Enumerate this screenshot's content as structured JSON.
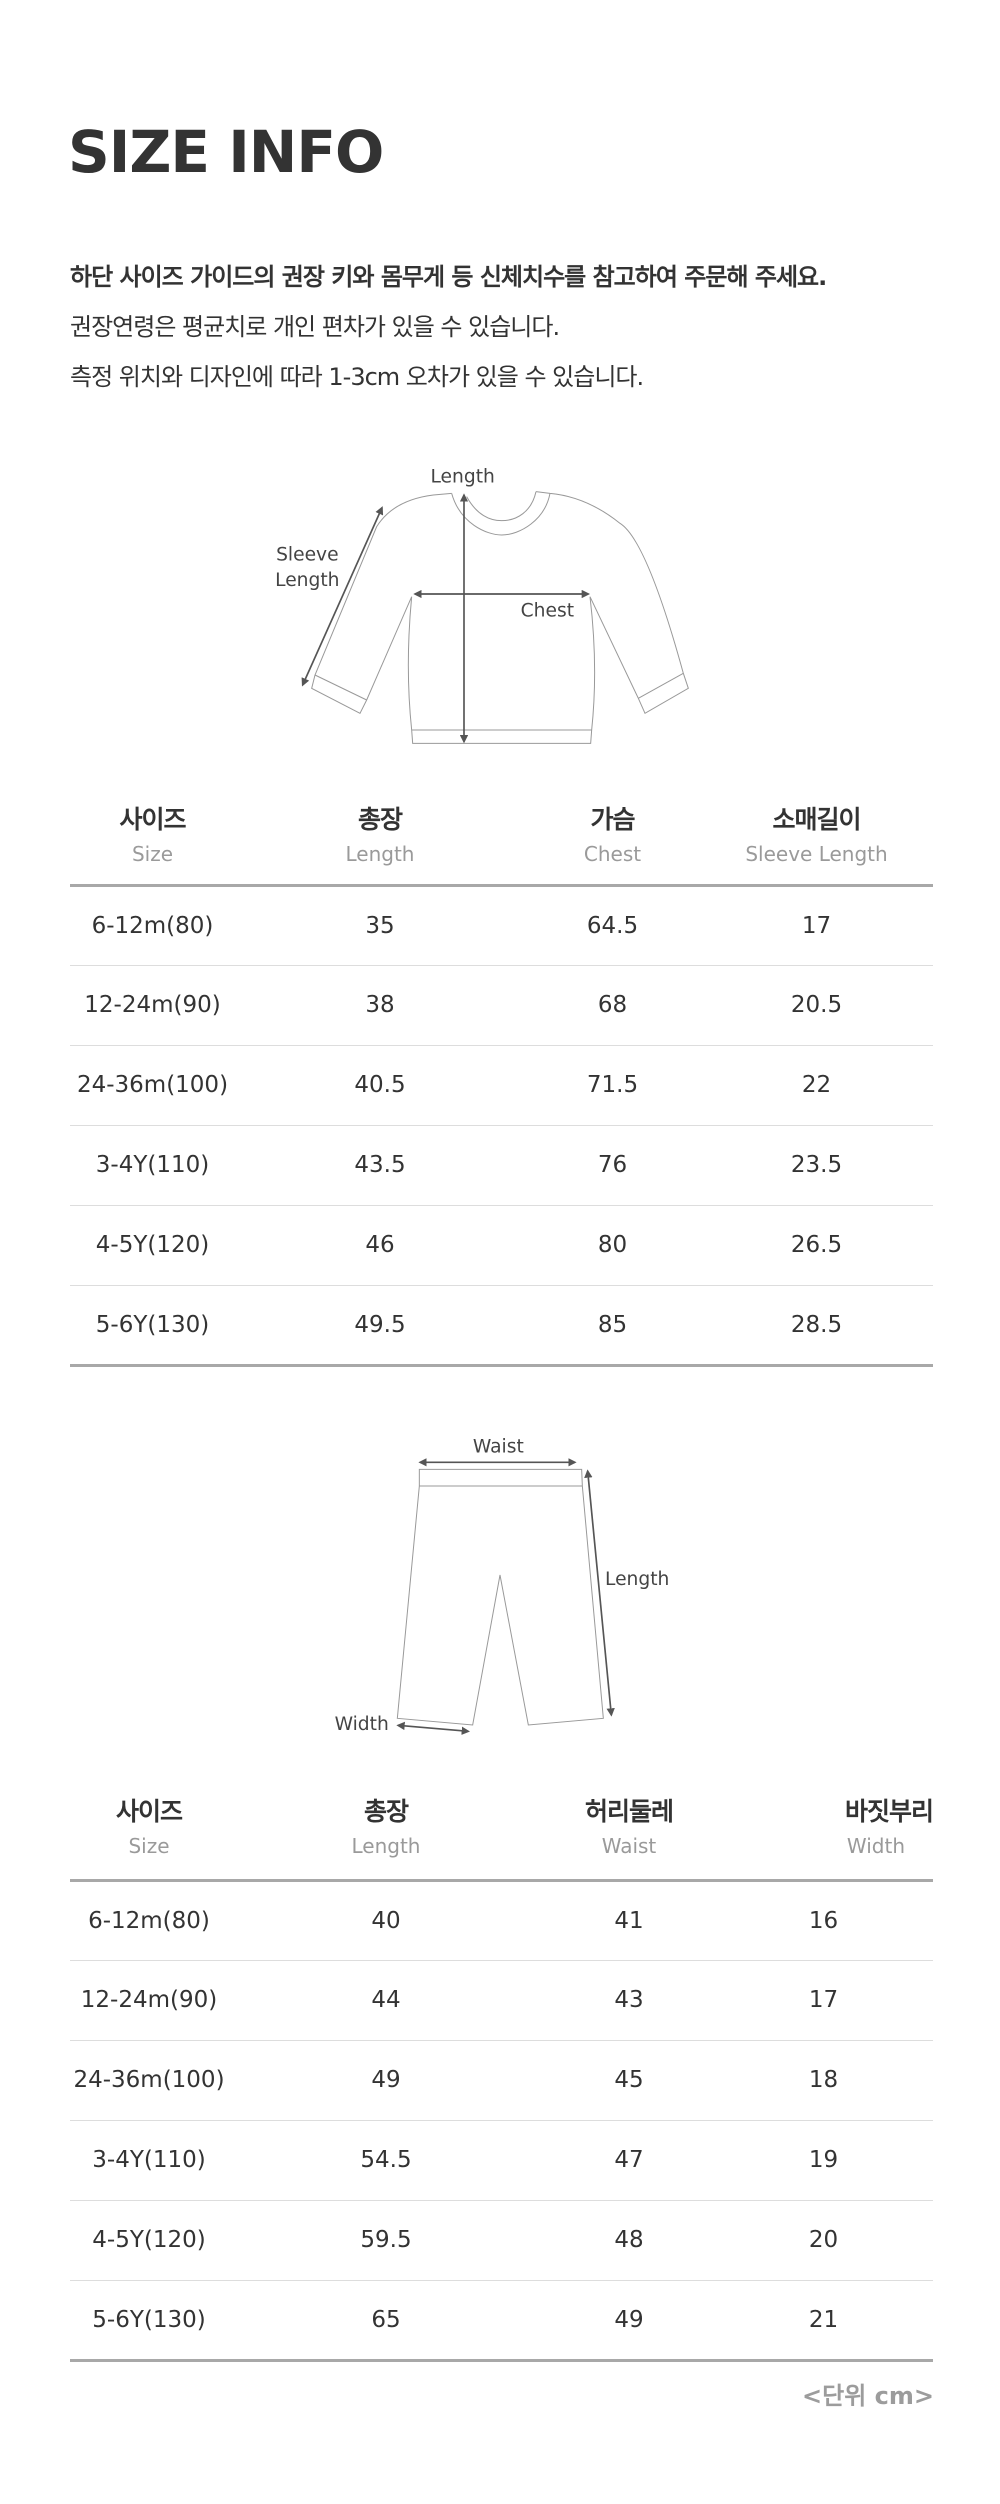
{
  "title": "SIZE INFO",
  "intro": [
    "하단 사이즈 가이드의 권장 키와 몸무게 등 신체치수를 참고하여 주문해 주세요.",
    "권장연령은 평균치로 개인 편차가 있을 수 있습니다.",
    "측정 위치와 디자인에 따라 1-3cm 오차가 있을 수 있습니다."
  ],
  "top_diagram": {
    "length": "Length",
    "sleeve_1": "Sleeve",
    "sleeve_2": "Length",
    "chest": "Chest"
  },
  "top_table": {
    "headers": [
      {
        "ko": "사이즈",
        "en": "Size"
      },
      {
        "ko": "총장",
        "en": "Length"
      },
      {
        "ko": "가슴",
        "en": "Chest"
      },
      {
        "ko": "소매길이",
        "en": "Sleeve Length"
      }
    ],
    "rows": [
      [
        "6-12m(80)",
        "35",
        "64.5",
        "17"
      ],
      [
        "12-24m(90)",
        "38",
        "68",
        "20.5"
      ],
      [
        "24-36m(100)",
        "40.5",
        "71.5",
        "22"
      ],
      [
        "3-4Y(110)",
        "43.5",
        "76",
        "23.5"
      ],
      [
        "4-5Y(120)",
        "46",
        "80",
        "26.5"
      ],
      [
        "5-6Y(130)",
        "49.5",
        "85",
        "28.5"
      ]
    ]
  },
  "bottom_diagram": {
    "waist": "Waist",
    "length": "Length",
    "width": "Width"
  },
  "bottom_table": {
    "headers": [
      {
        "ko": "사이즈",
        "en": "Size"
      },
      {
        "ko": "총장",
        "en": "Length"
      },
      {
        "ko": "허리둘레",
        "en": "Waist"
      },
      {
        "ko": "바짓부리",
        "en": "Width"
      }
    ],
    "rows": [
      [
        "6-12m(80)",
        "40",
        "41",
        "16"
      ],
      [
        "12-24m(90)",
        "44",
        "43",
        "17"
      ],
      [
        "24-36m(100)",
        "49",
        "45",
        "18"
      ],
      [
        "3-4Y(110)",
        "54.5",
        "47",
        "19"
      ],
      [
        "4-5Y(120)",
        "59.5",
        "48",
        "20"
      ],
      [
        "5-6Y(130)",
        "65",
        "49",
        "21"
      ]
    ]
  },
  "unit": "<단위 cm>"
}
